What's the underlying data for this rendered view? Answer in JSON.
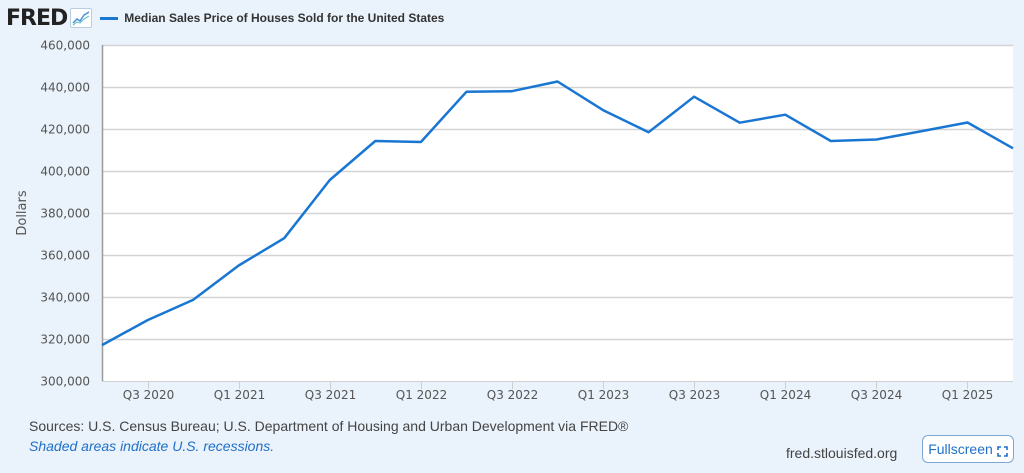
{
  "header": {
    "logo_text": "FRED",
    "logo_icon": "line-chart-icon",
    "legend_label": "Median Sales Price of Houses Sold for the United States",
    "series_color": "#1976d2"
  },
  "footer": {
    "sources": "Sources: U.S. Census Bureau; U.S. Department of Housing and Urban Development via FRED®",
    "recession_note": "Shaded areas indicate U.S. recessions.",
    "site": "fred.stlouisfed.org",
    "fullscreen_label": "Fullscreen",
    "fullscreen_icon": "expand-icon"
  },
  "chart_data": {
    "type": "line",
    "title": "Median Sales Price of Houses Sold for the United States",
    "xlabel": "",
    "ylabel": "Dollars",
    "ylim": [
      300000,
      460000
    ],
    "yticks": [
      300000,
      320000,
      340000,
      360000,
      380000,
      400000,
      420000,
      440000,
      460000
    ],
    "ytick_labels": [
      "300,000",
      "320,000",
      "340,000",
      "360,000",
      "380,000",
      "400,000",
      "420,000",
      "440,000",
      "460,000"
    ],
    "x": [
      "Q2 2020",
      "Q3 2020",
      "Q4 2020",
      "Q1 2021",
      "Q2 2021",
      "Q3 2021",
      "Q4 2021",
      "Q1 2022",
      "Q2 2022",
      "Q3 2022",
      "Q4 2022",
      "Q1 2023",
      "Q2 2023",
      "Q3 2023",
      "Q4 2023",
      "Q1 2024",
      "Q2 2024",
      "Q3 2024",
      "Q4 2024",
      "Q1 2025",
      "Q2 2025"
    ],
    "xtick_labels": [
      "Q3 2020",
      "Q1 2021",
      "Q3 2021",
      "Q1 2022",
      "Q3 2022",
      "Q1 2023",
      "Q3 2023",
      "Q1 2024",
      "Q3 2024",
      "Q1 2025"
    ],
    "grid": true,
    "legend": "top-left",
    "series": [
      {
        "name": "Median Sales Price of Houses Sold for the United States",
        "color": "#1976d2",
        "values": [
          317100,
          329000,
          338600,
          355000,
          368000,
          395700,
          414300,
          413800,
          437700,
          438000,
          442600,
          429000,
          418500,
          435400,
          423000,
          426800,
          414300,
          415000,
          419000,
          423100,
          410800
        ]
      }
    ]
  }
}
